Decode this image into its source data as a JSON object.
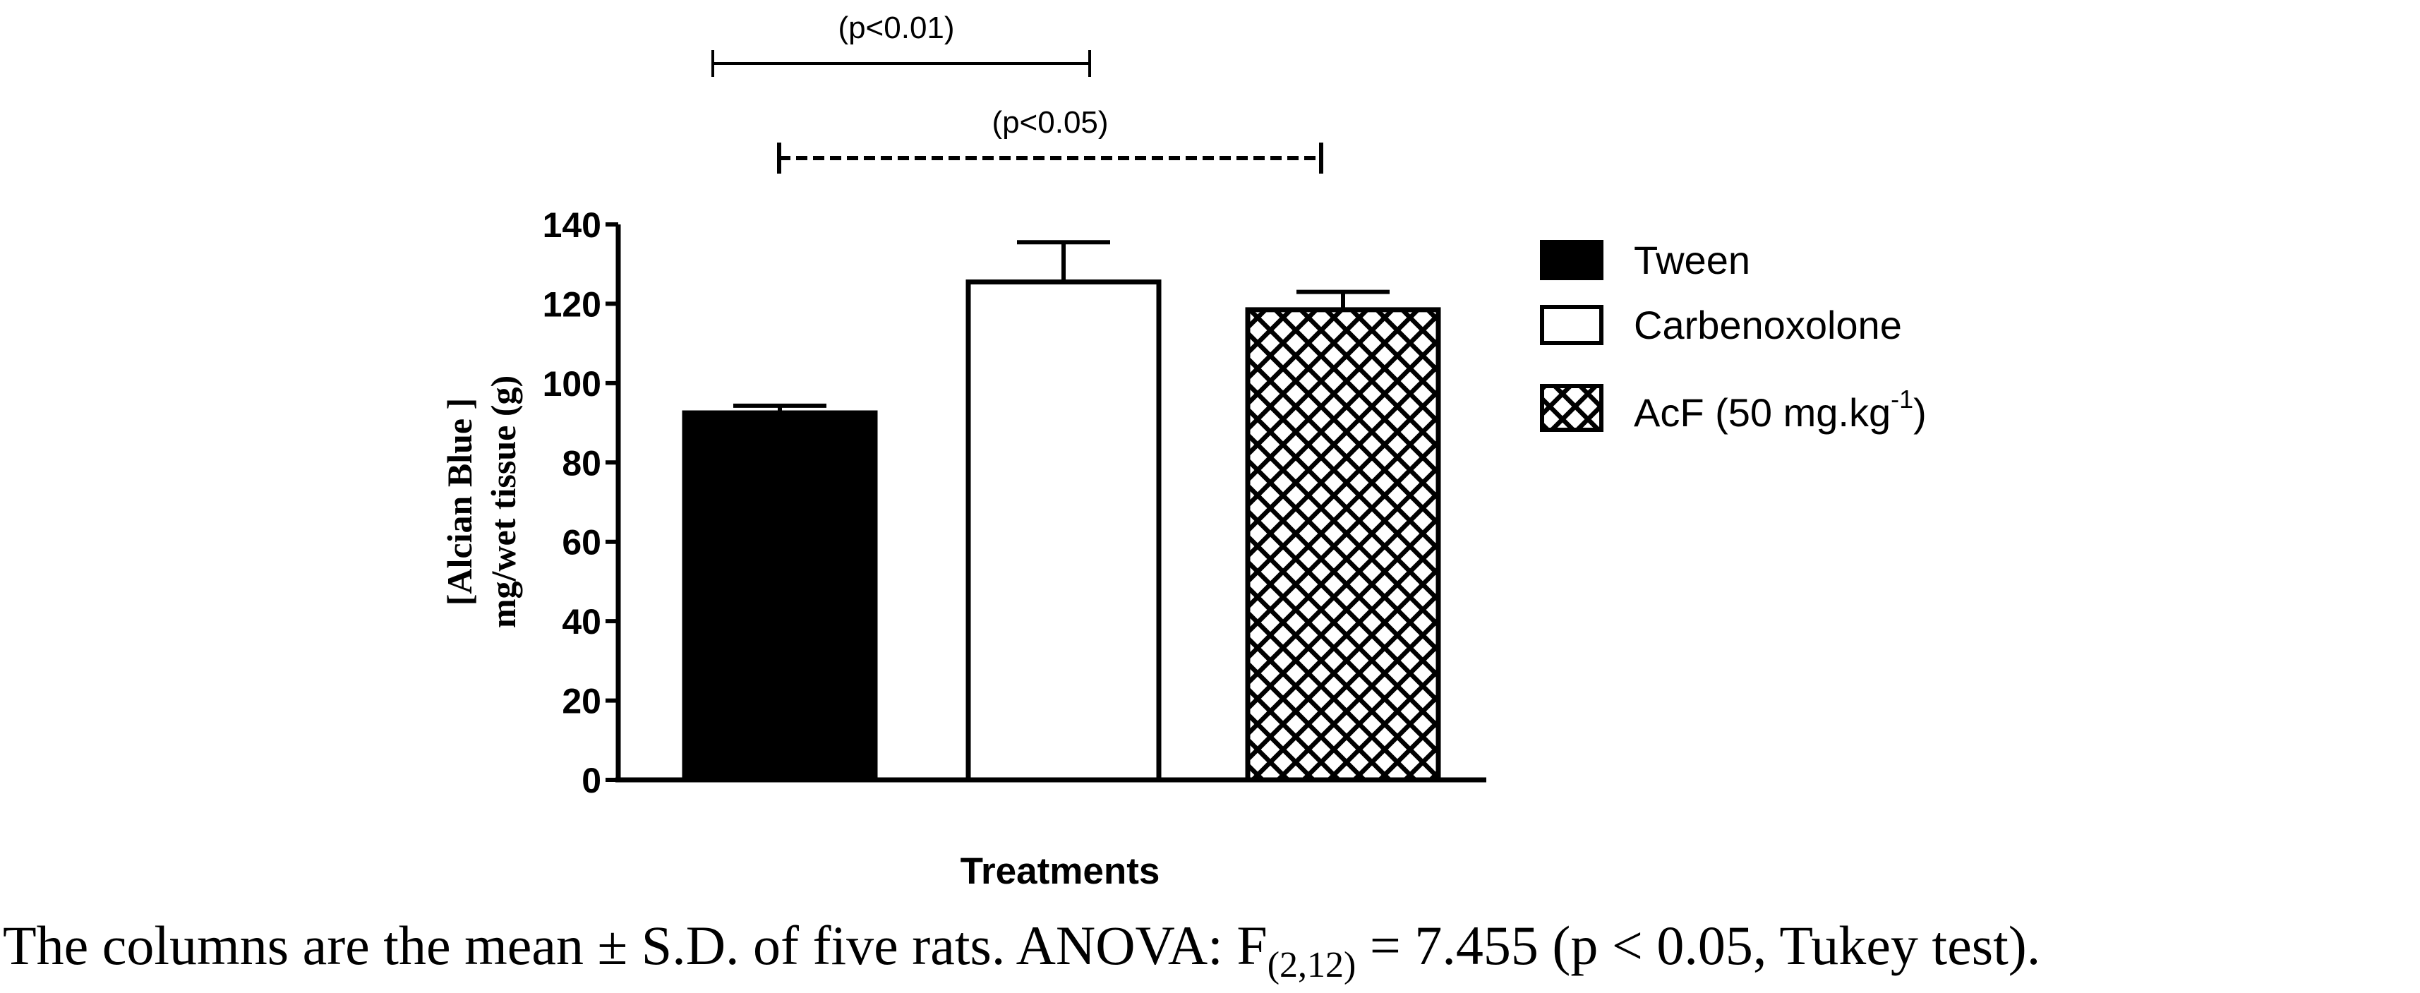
{
  "chart_data": {
    "type": "bar",
    "categories": [
      "Tween",
      "Carbenoxolone",
      "AcF (50 mg.kg-1)"
    ],
    "values": [
      92.5,
      125.5,
      118.5
    ],
    "errors": [
      1.8,
      10.0,
      4.5
    ],
    "fills": [
      "solid",
      "empty",
      "crosshatch"
    ],
    "title": "",
    "xlabel": "Treatments",
    "ylabel_line1": "[Alcian Blue ]",
    "ylabel_line2": "mg/wet tissue (g)",
    "ylim": [
      0,
      140
    ],
    "yticks": [
      0,
      20,
      40,
      60,
      80,
      100,
      120,
      140
    ],
    "ytick_labels": [
      "0",
      "20",
      "40",
      "60",
      "80",
      "100",
      "120",
      "140"
    ],
    "grid": false,
    "legend": {
      "placement": "right",
      "entries": [
        {
          "label": "Tween",
          "fill": "solid"
        },
        {
          "label": "Carbenoxolone",
          "fill": "empty"
        },
        {
          "label_main": "AcF (50 mg.kg",
          "label_sup": "-1",
          "label_end": ")",
          "fill": "crosshatch"
        }
      ]
    },
    "significance": [
      {
        "label": "(p<0.01)",
        "from": 0,
        "to": 1,
        "style": "solid"
      },
      {
        "label": "(p<0.05)",
        "from": 0,
        "to": 2,
        "style": "dashed"
      }
    ]
  },
  "caption": {
    "text_before": "The columns are the mean ± S.D. of five rats. ANOVA: F",
    "subscript": "(2,12)",
    "text_after": " = 7.455 (p < 0.05, Tukey test)."
  }
}
